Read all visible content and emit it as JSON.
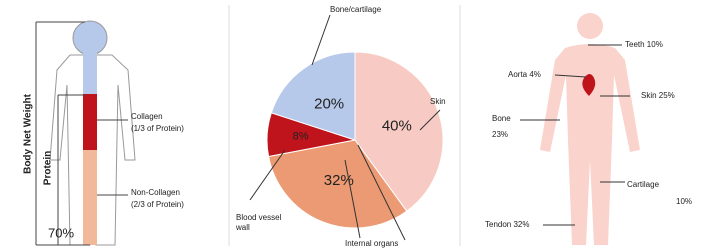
{
  "left_panel": {
    "body_label": "Body Net Weight",
    "protein_label": "Protein",
    "percent": "70%",
    "collagen": "Collagen",
    "collagen_note": "(1/3 of Protein)",
    "non_collagen": "Non-Collagen",
    "non_collagen_note": "(2/3 of Protein)"
  },
  "chart_data": {
    "type": "pie",
    "categories": [
      "Skin",
      "Internal organs",
      "Blood vessel wall",
      "Bone/cartilage"
    ],
    "values": [
      40,
      32,
      8,
      20
    ],
    "value_labels": [
      "40%",
      "32%",
      "8%",
      "20%"
    ],
    "colors": [
      "#f7cbc4",
      "#ec9a73",
      "#c0141c",
      "#b7c9ea"
    ]
  },
  "right_panel": {
    "teeth": "Teeth 10%",
    "aorta": "Aorta 4%",
    "skin": "Skin 25%",
    "bone": "Bone",
    "bone_pct": "23%",
    "cartilage": "Cartilage",
    "cartilage_pct": "10%",
    "tendon": "Tendon 32%"
  }
}
